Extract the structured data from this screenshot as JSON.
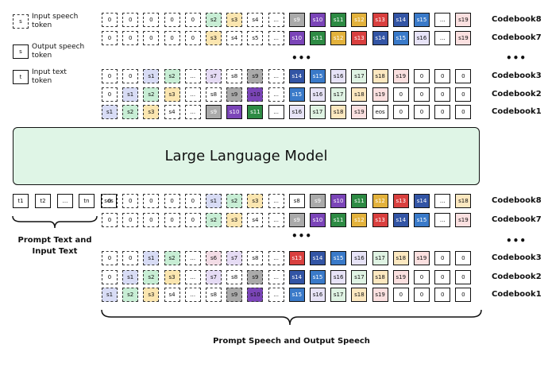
{
  "legend": [
    {
      "sample": "s",
      "label": "Input speech token",
      "style": "dashed"
    },
    {
      "sample": "s",
      "label": "Output speech token",
      "style": "solid"
    },
    {
      "sample": "t",
      "label": "Input text token",
      "style": "solid"
    }
  ],
  "llm_label": "Large Language Model",
  "ellipsis": "•••",
  "colors": {
    "s1": "#d8dcf5",
    "s2": "#c8eed5",
    "s3": "#fbe6b0",
    "s4": "#ffffff",
    "s5": "#ffffff",
    "s6": "#f3dde6",
    "s7": "#e6dcf5",
    "s8": "#ffffff",
    "s9": "#aaaaaa",
    "s10": "#7b45b8",
    "s11": "#2e8b44",
    "s12": "#e3b23c",
    "s13": "#d9403f",
    "s14": "#3355a5",
    "s15": "#3a7ac9",
    "s16": "#e7e3f7",
    "s17": "#dff3e3",
    "s18": "#fce8c0",
    "s19": "#fbe0e0"
  },
  "top_grid": {
    "rows": [
      {
        "label": "Codebook8",
        "cells": [
          "0",
          "0",
          "0",
          "0",
          "0",
          "s2",
          "s3",
          "s4",
          "...",
          "s9",
          "s10",
          "s11",
          "s12",
          "s13",
          "s14",
          "s15",
          "...",
          "s19"
        ],
        "styles": "dddddddddsssssssss"
      },
      {
        "label": "Codebook7",
        "cells": [
          "0",
          "0",
          "0",
          "0",
          "0",
          "s3",
          "s4",
          "s5",
          "...",
          "s10",
          "s11",
          "s12",
          "s13",
          "s14",
          "s15",
          "s16",
          "...",
          "s19"
        ],
        "styles": "dddddddddsssssssss"
      },
      {
        "label": "Codebook3",
        "cells": [
          "0",
          "0",
          "s1",
          "s2",
          "...",
          "s7",
          "s8",
          "s9",
          "...",
          "s14",
          "s15",
          "s16",
          "s17",
          "s18",
          "s19",
          "0",
          "0",
          "0"
        ],
        "styles": "dddddddddsssssssss"
      },
      {
        "label": "Codebook2",
        "cells": [
          "0",
          "s1",
          "s2",
          "s3",
          "...",
          "s8",
          "s9",
          "s10",
          "...",
          "s15",
          "s16",
          "s17",
          "s18",
          "s19",
          "0",
          "0",
          "0",
          "0"
        ],
        "styles": "dddddddddsssssssss"
      },
      {
        "label": "Codebook1",
        "cells": [
          "s1",
          "s2",
          "s3",
          "s4",
          "...",
          "s9",
          "s10",
          "s11",
          "...",
          "s16",
          "s17",
          "s18",
          "s19",
          "eos",
          "0",
          "0",
          "0",
          "0"
        ],
        "styles": "dddddsssssssssssss"
      }
    ]
  },
  "text_tokens": [
    "t1",
    "t2",
    "...",
    "tn",
    "sos"
  ],
  "bottom_grid": {
    "rows": [
      {
        "label": "Codebook8",
        "cells": [
          "0",
          "0",
          "0",
          "0",
          "0",
          "s1",
          "s2",
          "s3",
          "...",
          "s8",
          "s9",
          "s10",
          "s11",
          "s12",
          "s13",
          "s14",
          "...",
          "s18"
        ],
        "styles": "dddddddddsssssssss"
      },
      {
        "label": "Codebook7",
        "cells": [
          "0",
          "0",
          "0",
          "0",
          "0",
          "s2",
          "s3",
          "s4",
          "...",
          "s9",
          "s10",
          "s11",
          "s12",
          "s13",
          "s14",
          "s15",
          "...",
          "s19"
        ],
        "styles": "dddddddddsssssssss"
      },
      {
        "label": "Codebook3",
        "cells": [
          "0",
          "0",
          "s1",
          "s2",
          "...",
          "s6",
          "s7",
          "s8",
          "...",
          "s13",
          "s14",
          "s15",
          "s16",
          "s17",
          "s18",
          "s19",
          "0",
          "0"
        ],
        "styles": "dddddddddsssssssss"
      },
      {
        "label": "Codebook2",
        "cells": [
          "0",
          "s1",
          "s2",
          "s3",
          "...",
          "s7",
          "s8",
          "s9",
          "...",
          "s14",
          "s15",
          "s16",
          "s17",
          "s18",
          "s19",
          "0",
          "0",
          "0"
        ],
        "styles": "dddddddddsssssssss"
      },
      {
        "label": "Codebook1",
        "cells": [
          "s1",
          "s2",
          "s3",
          "s4",
          "...",
          "s8",
          "s9",
          "s10",
          "...",
          "s15",
          "s16",
          "s17",
          "s18",
          "s19",
          "0",
          "0",
          "0",
          "0"
        ],
        "styles": "dddddddddsssssssss"
      }
    ]
  },
  "captions": {
    "prompt_text": "Prompt Text and\nInput Text",
    "prompt_speech": "Prompt Speech and Output Speech"
  }
}
